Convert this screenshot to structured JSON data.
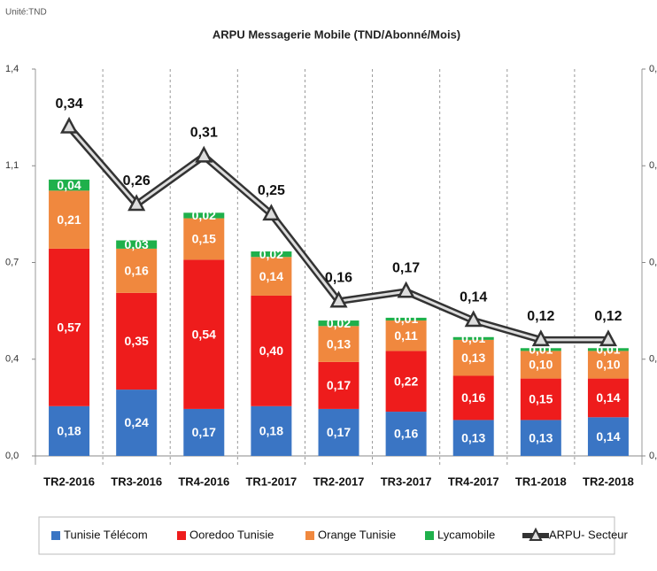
{
  "chart_data": {
    "type": "stacked-bar-line",
    "unit_note": "Unité:TND",
    "title": "ARPU Messagerie Mobile (TND/Abonné/Mois)",
    "categories": [
      "TR2-2016",
      "TR3-2016",
      "TR4-2016",
      "TR1-2017",
      "TR2-2017",
      "TR3-2017",
      "TR4-2017",
      "TR1-2018",
      "TR2-2018"
    ],
    "series": [
      {
        "name": "Tunisie Télécom",
        "color": "#3a75c4",
        "values": [
          0.18,
          0.24,
          0.17,
          0.18,
          0.17,
          0.16,
          0.13,
          0.13,
          0.14
        ],
        "value_labels": [
          "0,18",
          "0,24",
          "0,17",
          "0,18",
          "0,17",
          "0,16",
          "0,13",
          "0,13",
          "0,14"
        ]
      },
      {
        "name": "Ooredoo Tunisie",
        "color": "#ee1c1c",
        "values": [
          0.57,
          0.35,
          0.54,
          0.4,
          0.17,
          0.22,
          0.16,
          0.15,
          0.14
        ],
        "value_labels": [
          "0,57",
          "0,35",
          "0,54",
          "0,40",
          "0,17",
          "0,22",
          "0,16",
          "0,15",
          "0,14"
        ]
      },
      {
        "name": "Orange Tunisie",
        "color": "#f0883e",
        "values": [
          0.21,
          0.16,
          0.15,
          0.14,
          0.13,
          0.11,
          0.13,
          0.1,
          0.1
        ],
        "value_labels": [
          "0,21",
          "0,16",
          "0,15",
          "0,14",
          "0,13",
          "0,11",
          "0,13",
          "0,10",
          "0,10"
        ]
      },
      {
        "name": "Lycamobile",
        "color": "#1fb04b",
        "values": [
          0.04,
          0.03,
          0.02,
          0.02,
          0.02,
          0.01,
          0.01,
          0.01,
          0.01
        ],
        "value_labels": [
          "0,04",
          "0,03",
          "0,02",
          "0,02",
          "0,02",
          "0,01",
          "0,01",
          "0,01",
          "0,01"
        ]
      },
      {
        "name": "ARPU- Secteur",
        "color": "#333333",
        "axis": "y2",
        "values": [
          0.34,
          0.26,
          0.31,
          0.25,
          0.16,
          0.17,
          0.14,
          0.12,
          0.12
        ],
        "value_labels": [
          "0,34",
          "0,26",
          "0,31",
          "0,25",
          "0,16",
          "0,17",
          "0,14",
          "0,12",
          "0,12"
        ]
      }
    ],
    "ylim": [
      0,
      1.4
    ],
    "yticks": [
      {
        "value": 0,
        "label": "0,0"
      },
      {
        "value": 0.35,
        "label": "0,4"
      },
      {
        "value": 0.7,
        "label": "0,7"
      },
      {
        "value": 1.05,
        "label": "1,1"
      },
      {
        "value": 1.4,
        "label": "1,4"
      }
    ],
    "y2lim": [
      0,
      0.4
    ],
    "y2ticks": [
      {
        "value": 0,
        "label": "0,"
      },
      {
        "value": 0.1,
        "label": "0,"
      },
      {
        "value": 0.2,
        "label": "0,"
      },
      {
        "value": 0.3,
        "label": "0,"
      },
      {
        "value": 0.4,
        "label": "0,"
      }
    ],
    "legend": "bottom"
  }
}
